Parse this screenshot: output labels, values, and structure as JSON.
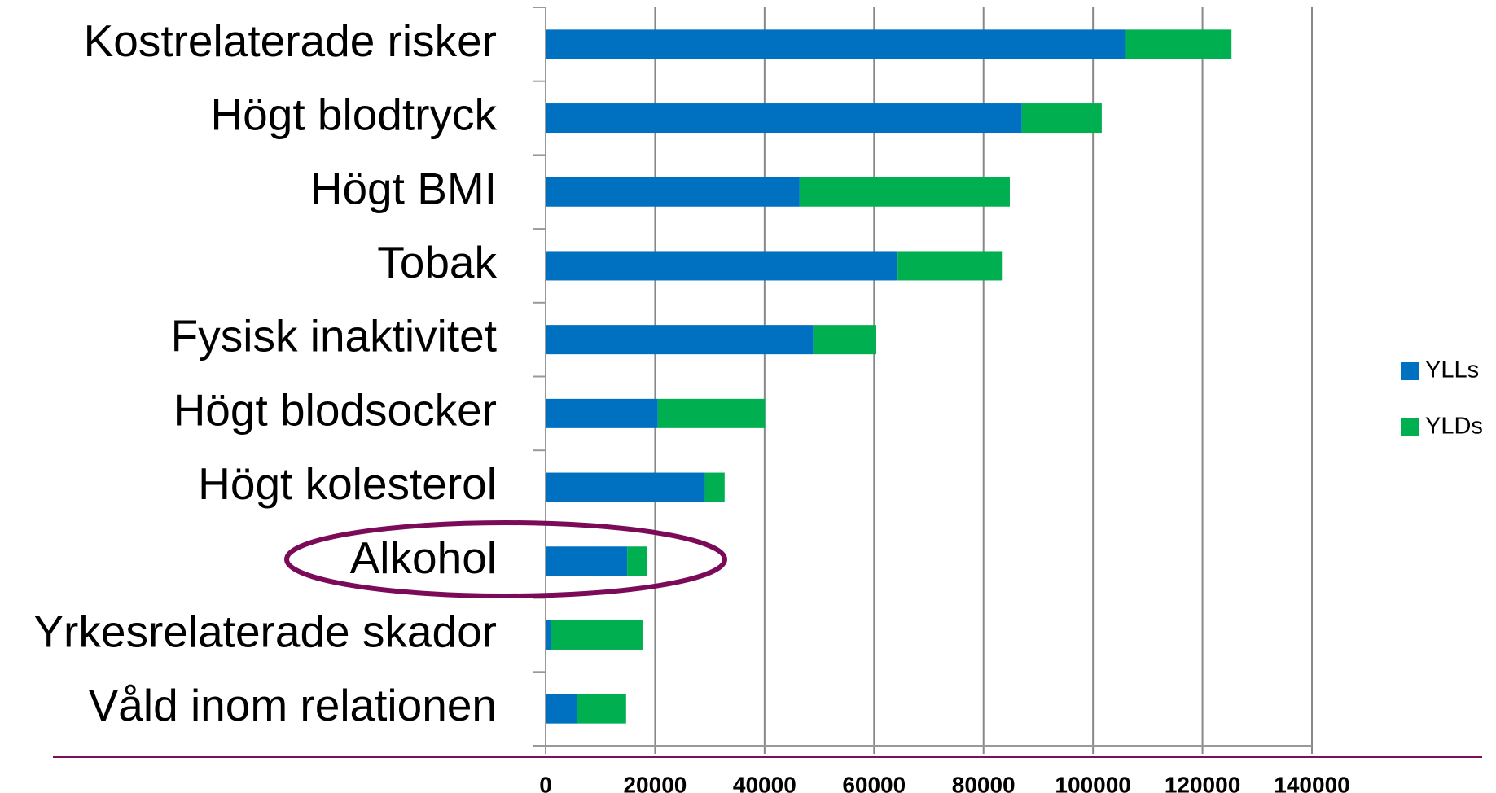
{
  "chart_data": {
    "type": "bar",
    "orientation": "horizontal",
    "stacked": true,
    "categories": [
      "Kostrelaterade risker",
      "Högt blodtryck",
      "Högt BMI",
      "Tobak",
      "Fysisk inaktivitet",
      "Högt blodsocker",
      "Högt kolesterol",
      "Alkohol",
      "Yrkesrelaterade skador",
      "Våld inom relationen"
    ],
    "series": [
      {
        "name": "YLLs",
        "color": "#0070c0",
        "values": [
          106000,
          87000,
          46400,
          64300,
          48900,
          20500,
          29100,
          14900,
          1000,
          5800
        ]
      },
      {
        "name": "YLDs",
        "color": "#00b050",
        "values": [
          19300,
          14600,
          38400,
          19200,
          11500,
          19600,
          3600,
          3700,
          16700,
          8900
        ]
      }
    ],
    "xlim": [
      0,
      140000
    ],
    "xticks": [
      0,
      20000,
      40000,
      60000,
      80000,
      100000,
      120000,
      140000
    ],
    "grid": true,
    "legend": "right"
  }
}
